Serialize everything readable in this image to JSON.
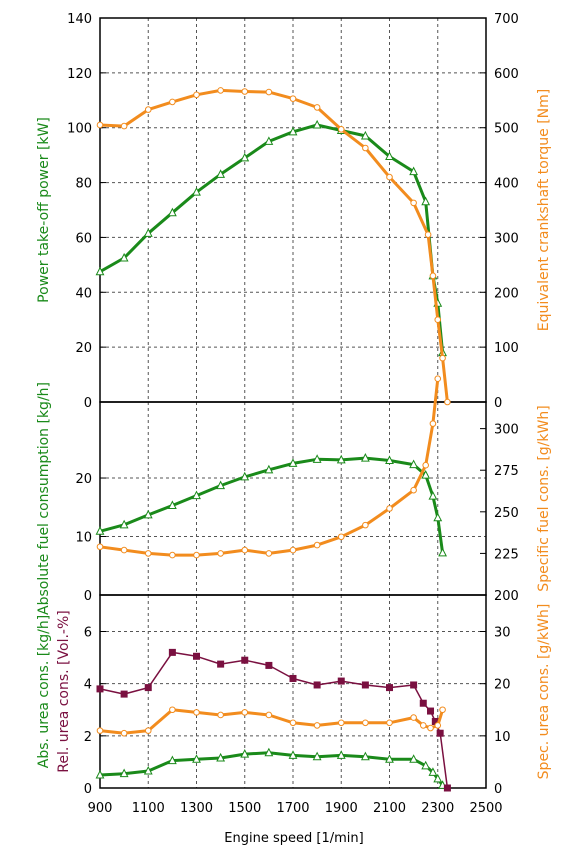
{
  "colors": {
    "green": "#1a8a1a",
    "orange": "#f28c1e",
    "purple": "#7a1040",
    "grid": "#555555"
  },
  "chart_data": {
    "type": "line",
    "xlabel": "Engine speed [1/min]",
    "xlim": [
      900,
      2500
    ],
    "x_ticks": [
      900,
      1100,
      1300,
      1500,
      1700,
      1900,
      2100,
      2300,
      2500
    ],
    "panels": [
      {
        "left_axis": {
          "label": "Power take-off power [kW]",
          "lim": [
            0,
            140
          ],
          "ticks": [
            0,
            20,
            40,
            60,
            80,
            100,
            120,
            140
          ]
        },
        "right_axis": {
          "label": "Equivalent crankshaft torque [Nm]",
          "lim": [
            0,
            700
          ],
          "ticks": [
            0,
            100,
            200,
            300,
            400,
            500,
            600,
            700
          ]
        },
        "series": [
          {
            "name": "Power take-off power",
            "axis": "left",
            "color": "green",
            "marker": "triangle",
            "x": [
              900,
              1000,
              1100,
              1200,
              1300,
              1400,
              1500,
              1600,
              1700,
              1800,
              1900,
              2000,
              2100,
              2200,
              2250,
              2280,
              2300,
              2320
            ],
            "y": [
              47.5,
              52.5,
              61.5,
              69,
              76.5,
              83,
              89,
              95,
              98.5,
              101,
              99,
              97,
              89.5,
              84,
              73,
              46,
              36,
              18
            ]
          },
          {
            "name": "Equivalent crankshaft torque",
            "axis": "right",
            "color": "orange",
            "marker": "circle",
            "x": [
              900,
              1000,
              1100,
              1200,
              1300,
              1400,
              1500,
              1600,
              1700,
              1800,
              1900,
              2000,
              2100,
              2200,
              2260,
              2280,
              2300,
              2320,
              2340
            ],
            "y": [
              505,
              503,
              533,
              547,
              560,
              568,
              566,
              565,
              553,
              537,
              497,
              463,
              410,
              363,
              305,
              230,
              150,
              80,
              0
            ]
          }
        ]
      },
      {
        "left_axis": {
          "label": "Absolute fuel consumption [kg/h]",
          "lim": [
            0,
            33
          ],
          "ticks": [
            0,
            10,
            20
          ]
        },
        "right_axis": {
          "label": "Specific fuel cons. [g/kWh]",
          "lim": [
            200,
            316
          ],
          "ticks": [
            200,
            225,
            250,
            275,
            300
          ]
        },
        "series": [
          {
            "name": "Absolute fuel consumption",
            "axis": "left",
            "color": "green",
            "marker": "triangle",
            "x": [
              900,
              1000,
              1100,
              1200,
              1300,
              1400,
              1500,
              1600,
              1700,
              1800,
              1900,
              2000,
              2100,
              2200,
              2250,
              2280,
              2300,
              2320
            ],
            "y": [
              10.9,
              12,
              13.7,
              15.3,
              17,
              18.7,
              20.2,
              21.4,
              22.5,
              23.2,
              23.1,
              23.4,
              23,
              22.3,
              20.5,
              16.9,
              13.2,
              7.2
            ]
          },
          {
            "name": "Specific fuel cons.",
            "axis": "right",
            "color": "orange",
            "marker": "circle",
            "x": [
              900,
              1000,
              1100,
              1200,
              1300,
              1400,
              1500,
              1600,
              1700,
              1800,
              1900,
              2000,
              2100,
              2200,
              2250,
              2280,
              2300
            ],
            "y": [
              229,
              227,
              225,
              224,
              224,
              225,
              227,
              225,
              227,
              230,
              235,
              242,
              252,
              263,
              278,
              303,
              330
            ]
          }
        ]
      },
      {
        "left_axis": {
          "label": "Abs. urea cons. [kg/h]",
          "label2": "Rel. urea cons. [Vol.-%]",
          "lim": [
            0,
            7.4
          ],
          "ticks": [
            0,
            2,
            4,
            6
          ]
        },
        "right_axis": {
          "label": "Spec. urea cons. [g/kWh]",
          "lim": [
            0,
            37
          ],
          "ticks": [
            0,
            10,
            20,
            30
          ]
        },
        "series": [
          {
            "name": "Abs. urea cons.",
            "axis": "left",
            "color": "green",
            "marker": "triangle",
            "x": [
              900,
              1000,
              1100,
              1200,
              1300,
              1400,
              1500,
              1600,
              1700,
              1800,
              1900,
              2000,
              2100,
              2200,
              2250,
              2280,
              2300,
              2320
            ],
            "y": [
              0.5,
              0.55,
              0.65,
              1.05,
              1.1,
              1.15,
              1.3,
              1.35,
              1.25,
              1.2,
              1.25,
              1.2,
              1.1,
              1.1,
              0.85,
              0.6,
              0.35,
              0.1
            ]
          },
          {
            "name": "Rel. urea cons.",
            "axis": "left",
            "color": "purple",
            "marker": "square",
            "x": [
              900,
              1000,
              1100,
              1200,
              1300,
              1400,
              1500,
              1600,
              1700,
              1800,
              1900,
              2000,
              2100,
              2200,
              2240,
              2270,
              2290,
              2310,
              2340
            ],
            "y": [
              3.8,
              3.6,
              3.85,
              5.2,
              5.05,
              4.75,
              4.9,
              4.7,
              4.2,
              3.95,
              4.1,
              3.95,
              3.85,
              3.95,
              3.25,
              2.95,
              2.55,
              2.1,
              0
            ]
          },
          {
            "name": "Spec. urea cons.",
            "axis": "right",
            "color": "orange",
            "marker": "circle",
            "x": [
              900,
              1000,
              1100,
              1200,
              1300,
              1400,
              1500,
              1600,
              1700,
              1800,
              1900,
              2000,
              2100,
              2200,
              2240,
              2270,
              2300,
              2320
            ],
            "y": [
              11,
              10.5,
              11,
              15,
              14.5,
              14,
              14.5,
              14,
              12.5,
              12,
              12.5,
              12.5,
              12.5,
              13.5,
              12,
              11.5,
              12,
              15
            ]
          }
        ]
      }
    ]
  }
}
